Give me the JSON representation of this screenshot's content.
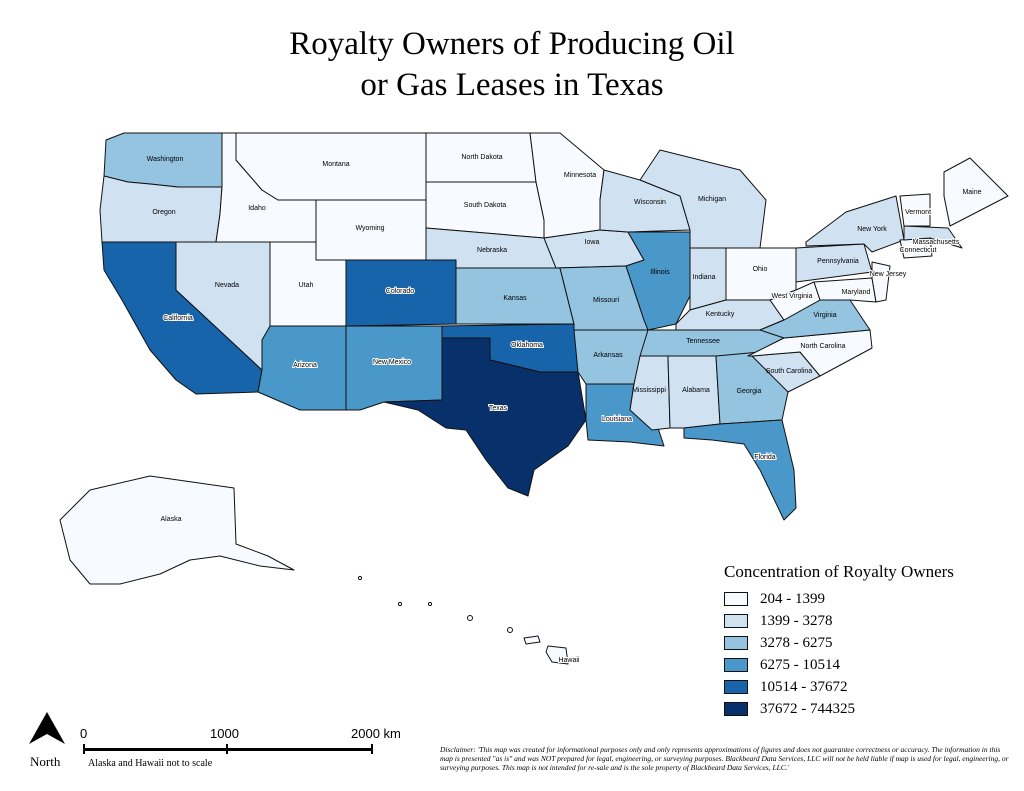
{
  "title_line1": "Royalty Owners of Producing Oil",
  "title_line2": "or Gas Leases in Texas",
  "legend": {
    "title": "Concentration of Royalty Owners",
    "classes": [
      {
        "label": "204 - 1399",
        "color": "#f7fbff"
      },
      {
        "label": "1399 - 3278",
        "color": "#d0e1f2"
      },
      {
        "label": "3278 - 6275",
        "color": "#94c4df"
      },
      {
        "label": "6275 - 10514",
        "color": "#4a98c9"
      },
      {
        "label": "10514 - 37672",
        "color": "#1764ab"
      },
      {
        "label": "37672 - 744325",
        "color": "#08306b"
      }
    ]
  },
  "states": {
    "washington": {
      "name": "Washington",
      "class": 2
    },
    "oregon": {
      "name": "Oregon",
      "class": 1
    },
    "california": {
      "name": "California",
      "class": 4
    },
    "idaho": {
      "name": "Idaho",
      "class": 0
    },
    "nevada": {
      "name": "Nevada",
      "class": 1
    },
    "montana": {
      "name": "Montana",
      "class": 0
    },
    "wyoming": {
      "name": "Wyoming",
      "class": 0
    },
    "utah": {
      "name": "Utah",
      "class": 0
    },
    "arizona": {
      "name": "Arizona",
      "class": 3
    },
    "colorado": {
      "name": "Colorado",
      "class": 4
    },
    "new_mexico": {
      "name": "New Mexico",
      "class": 3
    },
    "north_dakota": {
      "name": "North Dakota",
      "class": 0
    },
    "south_dakota": {
      "name": "South Dakota",
      "class": 0
    },
    "nebraska": {
      "name": "Nebraska",
      "class": 1
    },
    "kansas": {
      "name": "Kansas",
      "class": 2
    },
    "oklahoma": {
      "name": "Oklahoma",
      "class": 4
    },
    "texas": {
      "name": "Texas",
      "class": 5
    },
    "minnesota": {
      "name": "Minnesota",
      "class": 0
    },
    "iowa": {
      "name": "Iowa",
      "class": 1
    },
    "missouri": {
      "name": "Missouri",
      "class": 2
    },
    "arkansas": {
      "name": "Arkansas",
      "class": 2
    },
    "louisiana": {
      "name": "Louisiana",
      "class": 3
    },
    "wisconsin": {
      "name": "Wisconsin",
      "class": 1
    },
    "illinois": {
      "name": "Illinois",
      "class": 3
    },
    "michigan": {
      "name": "Michigan",
      "class": 1
    },
    "indiana": {
      "name": "Indiana",
      "class": 1
    },
    "ohio": {
      "name": "Ohio",
      "class": 0
    },
    "kentucky": {
      "name": "Kentucky",
      "class": 1
    },
    "tennessee": {
      "name": "Tennessee",
      "class": 2
    },
    "mississippi": {
      "name": "Mississippi",
      "class": 1
    },
    "alabama": {
      "name": "Alabama",
      "class": 1
    },
    "georgia": {
      "name": "Georgia",
      "class": 2
    },
    "florida": {
      "name": "Florida",
      "class": 3
    },
    "south_carolina": {
      "name": "South Carolina",
      "class": 1
    },
    "north_carolina": {
      "name": "North Carolina",
      "class": 0
    },
    "virginia": {
      "name": "Virginia",
      "class": 2
    },
    "west_virginia": {
      "name": "West Virginia",
      "class": 0
    },
    "pennsylvania": {
      "name": "Pennsylvania",
      "class": 1
    },
    "new_york": {
      "name": "New York",
      "class": 1
    },
    "maryland": {
      "name": "Maryland",
      "class": 0
    },
    "new_jersey": {
      "name": "New Jersey",
      "class": 0
    },
    "connecticut": {
      "name": "Connecticut",
      "class": 0
    },
    "massachusetts": {
      "name": "Massachusetts",
      "class": 1
    },
    "vermont": {
      "name": "Vermont",
      "class": 0
    },
    "maine": {
      "name": "Maine",
      "class": 0
    },
    "alaska": {
      "name": "Alaska",
      "class": 0
    },
    "hawaii": {
      "name": "Hawaii",
      "class": 0
    }
  },
  "scale_bar": {
    "label_0": "0",
    "label_1000": "1000",
    "label_2000": "2000 km",
    "note": "Alaska and Hawaii not to scale"
  },
  "north_label": "North",
  "disclaimer": "Disclaimer: 'This map was created for informational purposes only and only represents approximations of figures and does not guarantee correctness or accuracy. The information in this map is presented \"as is\" and  was NOT prepared for legal, engineering, or surveying purposes. Blackbeard Data Services, LLC will not be held liable if map is used for legal, engineering, or surveying purposes.  This map is not intended for re-sale and is the sole property of Blackbeard Data Services, LLC.'"
}
